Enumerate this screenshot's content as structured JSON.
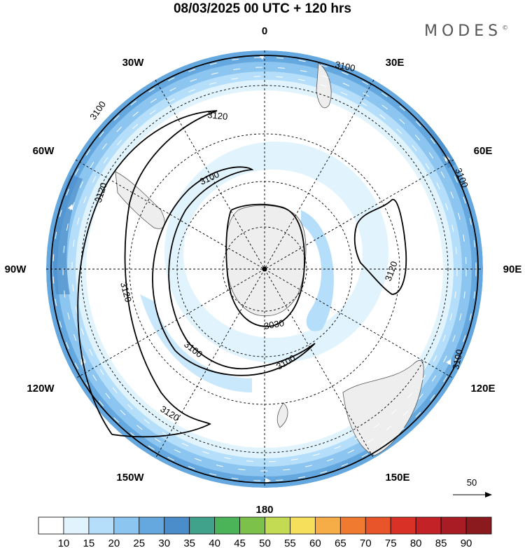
{
  "header": {
    "title": "08/03/2025  00 UTC  + 120 hrs",
    "brand": "MODES",
    "brand_mark": "©"
  },
  "map": {
    "projection": "south-polar-stereographic",
    "longitude_labels": [
      {
        "lon": 0,
        "text": "0"
      },
      {
        "lon": 30,
        "text": "30E"
      },
      {
        "lon": 60,
        "text": "60E"
      },
      {
        "lon": 90,
        "text": "90E"
      },
      {
        "lon": 120,
        "text": "120E"
      },
      {
        "lon": 150,
        "text": "150E"
      },
      {
        "lon": 180,
        "text": "180"
      },
      {
        "lon": -150,
        "text": "150W"
      },
      {
        "lon": -120,
        "text": "120W"
      },
      {
        "lon": -90,
        "text": "90W"
      },
      {
        "lon": -60,
        "text": "60W"
      },
      {
        "lon": -30,
        "text": "30W"
      }
    ],
    "contour_labels": [
      "3100",
      "3120",
      "3100",
      "3120",
      "3100",
      "3120",
      "3120",
      "3100",
      "3100",
      "3120",
      "3030",
      "3100",
      "3100"
    ],
    "wind_reference": {
      "value": "50"
    }
  },
  "colorbar": {
    "ticks": [
      "10",
      "15",
      "20",
      "25",
      "30",
      "35",
      "40",
      "45",
      "50",
      "55",
      "60",
      "65",
      "70",
      "75",
      "80",
      "85",
      "90"
    ],
    "colors": [
      "#ffffff",
      "#e1f4fd",
      "#b4defa",
      "#8cc5ef",
      "#64a8df",
      "#4b8dcb",
      "#41a28c",
      "#4bb358",
      "#7cc24a",
      "#c2db52",
      "#f6df5a",
      "#f6ad48",
      "#f07b30",
      "#e8552a",
      "#da3127",
      "#c32226",
      "#a91c24",
      "#8a1a1e"
    ]
  }
}
